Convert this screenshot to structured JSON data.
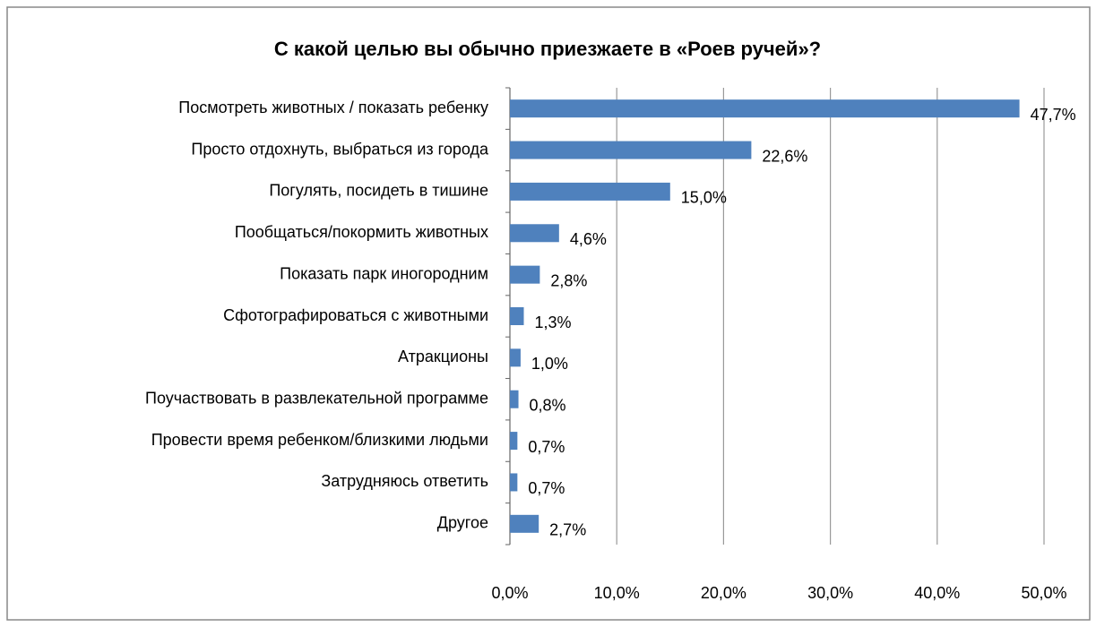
{
  "chart_data": {
    "type": "hbar",
    "title": "С какой целью вы обычно приезжаете в «Роев ручей»?",
    "categories": [
      "Посмотреть животных / показать ребенку",
      "Просто отдохнуть, выбраться из города",
      "Погулять, посидеть в тишине",
      "Пообщаться/покормить животных",
      "Показать парк иногородним",
      "Сфотографироваться с животными",
      "Атракционы",
      "Поучаствовать в развлекательной программе",
      "Провести время ребенком/близкими людьми",
      "Затрудняюсь ответить",
      "Другое"
    ],
    "values": [
      47.7,
      22.6,
      15.0,
      4.6,
      2.8,
      1.3,
      1.0,
      0.8,
      0.7,
      0.7,
      2.7
    ],
    "value_labels": [
      "47,7%",
      "22,6%",
      "15,0%",
      "4,6%",
      "2,8%",
      "1,3%",
      "1,0%",
      "0,8%",
      "0,7%",
      "0,7%",
      "2,7%"
    ],
    "color": "#4f81bd",
    "xlim": [
      0,
      50
    ],
    "xticks": [
      {
        "value": 0,
        "label": "0,0%"
      },
      {
        "value": 10,
        "label": "10,0%"
      },
      {
        "value": 20,
        "label": "20,0%"
      },
      {
        "value": 30,
        "label": "30,0%"
      },
      {
        "value": 40,
        "label": "40,0%"
      },
      {
        "value": 50,
        "label": "50,0%"
      }
    ],
    "grid": true
  }
}
